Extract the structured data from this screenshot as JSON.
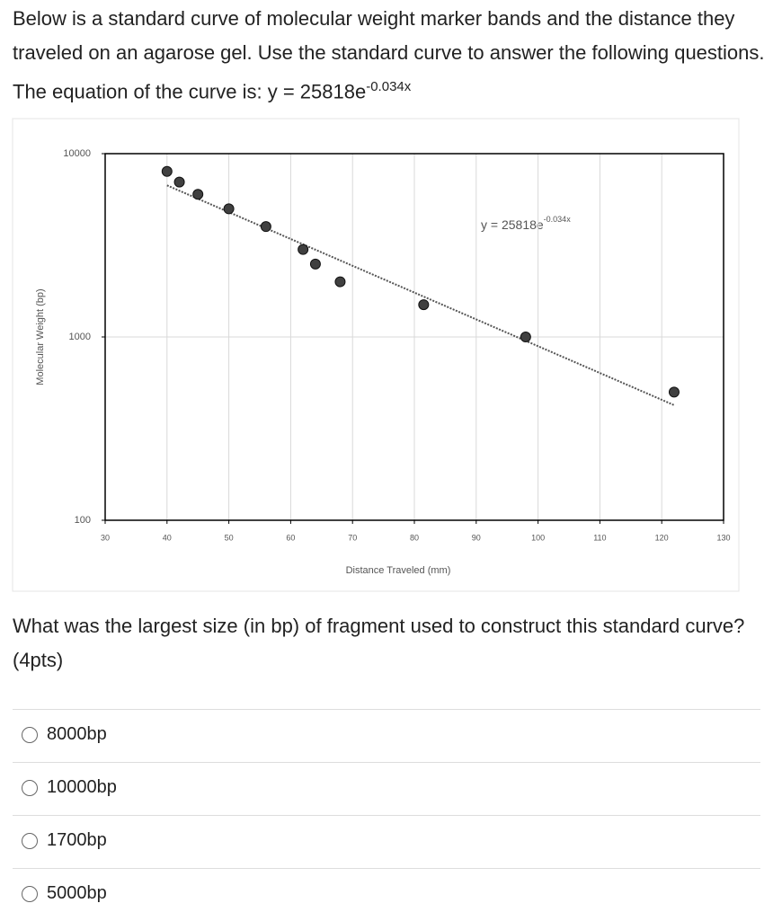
{
  "intro": {
    "text": "Below is a standard curve of molecular weight marker bands and the distance they traveled on an agarose gel. Use the standard curve to answer the following questions. The equation of the curve is: y = 25818e",
    "superscript": "-0.034x"
  },
  "chart_data": {
    "type": "scatter",
    "x_label": "Distance Traveled (mm)",
    "y_label": "Molecular Weight (bp)",
    "trendline_label": "y = 25818e",
    "trendline_superscript": "-0.034x",
    "x": [
      40,
      42,
      45,
      50,
      56,
      62,
      64,
      68,
      81.5,
      98,
      122
    ],
    "values": [
      8000,
      7000,
      6000,
      5000,
      4000,
      3000,
      2500,
      2000,
      1500,
      1000,
      500
    ],
    "color": "#404040",
    "xlim": [
      30,
      130
    ],
    "xticks": [
      30,
      40,
      50,
      60,
      70,
      80,
      90,
      100,
      110,
      120,
      130
    ],
    "ylim": [
      100,
      10000
    ],
    "yticks": [
      100,
      1000,
      10000
    ],
    "log_y": true,
    "grid": true
  },
  "question": "What was the largest size (in bp) of fragment used to construct this standard curve? (4pts)",
  "options": [
    "8000bp",
    "10000bp",
    "1700bp",
    "5000bp"
  ]
}
